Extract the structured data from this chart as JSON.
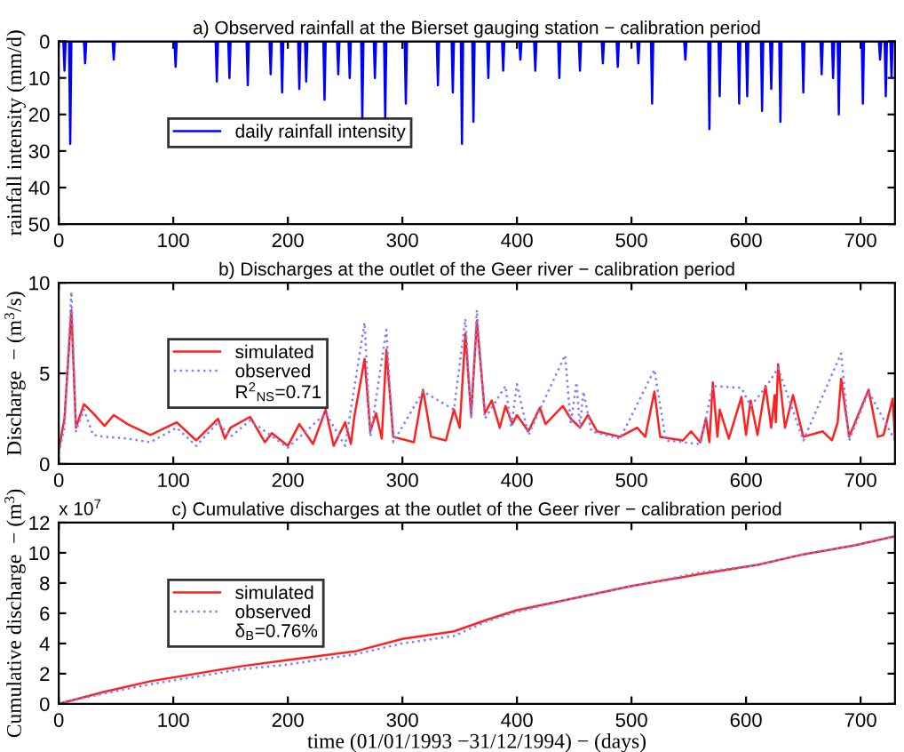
{
  "chart_data": [
    {
      "type": "line",
      "title": "a) Observed rainfall at the Bierset gauging station − calibration period",
      "ylabel": "rainfall intensity (mm/d)",
      "xlim": [
        0,
        730
      ],
      "xticks": [
        0,
        100,
        200,
        300,
        400,
        500,
        600,
        700
      ],
      "ylim": [
        50,
        0
      ],
      "yticks": [
        0,
        10,
        20,
        30,
        40,
        50
      ],
      "legend": "left",
      "grid": false,
      "series": [
        {
          "name": "daily rainfall intensity",
          "color": "#0000ff",
          "x": [
            0,
            4,
            5,
            6,
            9,
            10,
            11,
            22,
            23,
            24,
            47,
            48,
            49,
            101,
            102,
            103,
            137,
            138,
            139,
            148,
            149,
            150,
            164,
            165,
            166,
            184,
            185,
            186,
            194,
            195,
            196,
            209,
            210,
            211,
            215,
            216,
            217,
            231,
            232,
            233,
            243,
            244,
            245,
            253,
            254,
            255,
            264,
            265,
            266,
            275,
            276,
            277,
            284,
            285,
            286,
            302,
            303,
            304,
            330,
            331,
            332,
            343,
            344,
            345,
            351,
            352,
            353,
            361,
            362,
            363,
            374,
            375,
            376,
            387,
            388,
            389,
            402,
            403,
            404,
            415,
            416,
            417,
            436,
            437,
            438,
            454,
            455,
            456,
            474,
            475,
            476,
            487,
            488,
            489,
            505,
            506,
            507,
            517,
            518,
            519,
            546,
            547,
            548,
            567,
            568,
            569,
            576,
            577,
            578,
            593,
            594,
            595,
            600,
            601,
            602,
            613,
            614,
            615,
            621,
            622,
            623,
            629,
            630,
            631,
            649,
            650,
            651,
            665,
            666,
            667,
            675,
            676,
            677,
            680,
            681,
            682,
            701,
            702,
            703,
            716,
            717,
            718,
            721,
            722,
            723,
            726,
            727,
            728,
            730
          ],
          "values": [
            0,
            0,
            8,
            0,
            0,
            28,
            0,
            0,
            6,
            0,
            0,
            5,
            0,
            0,
            7,
            0,
            0,
            11,
            0,
            0,
            10,
            0,
            0,
            12,
            0,
            0,
            9,
            0,
            0,
            14,
            0,
            0,
            13,
            0,
            0,
            11,
            0,
            0,
            16,
            0,
            0,
            9,
            0,
            0,
            10,
            0,
            0,
            21,
            0,
            0,
            10,
            0,
            0,
            21,
            0,
            0,
            17,
            0,
            0,
            12,
            0,
            0,
            14,
            0,
            0,
            28,
            0,
            0,
            22,
            0,
            0,
            10,
            0,
            0,
            8,
            0,
            0,
            5,
            0,
            0,
            8,
            0,
            0,
            10,
            0,
            0,
            8,
            0,
            0,
            6,
            0,
            0,
            7,
            0,
            0,
            6,
            0,
            0,
            17,
            0,
            0,
            5,
            0,
            0,
            24,
            0,
            0,
            15,
            0,
            0,
            17,
            0,
            0,
            15,
            0,
            0,
            19,
            0,
            0,
            13,
            0,
            0,
            22,
            0,
            0,
            14,
            0,
            0,
            9,
            0,
            0,
            10,
            0,
            0,
            20,
            0,
            0,
            17,
            0,
            0,
            5,
            0,
            0,
            15,
            0,
            0,
            10,
            0,
            0
          ]
        }
      ]
    },
    {
      "type": "line",
      "title": "b) Discharges at the outlet of the Geer river − calibration period",
      "ylabel": "Discharge  − (m$^{3}$/s)",
      "xlim": [
        0,
        730
      ],
      "xticks": [
        0,
        100,
        200,
        300,
        400,
        500,
        600,
        700
      ],
      "ylim": [
        0,
        10
      ],
      "yticks": [
        0,
        5,
        10
      ],
      "legend": "left",
      "grid": false,
      "annotations": [
        "R$^{2}$$_{NS}$=0.71"
      ],
      "series": [
        {
          "name": "simulated",
          "color": "#ff2020",
          "line_style": "solid",
          "x": [
            0,
            5,
            11,
            15,
            22,
            30,
            40,
            48,
            60,
            80,
            103,
            120,
            139,
            145,
            150,
            167,
            180,
            186,
            200,
            210,
            222,
            233,
            240,
            250,
            255,
            258,
            267,
            272,
            277,
            282,
            286,
            292,
            310,
            318,
            325,
            338,
            345,
            350,
            355,
            360,
            365,
            372,
            378,
            385,
            390,
            396,
            400,
            410,
            420,
            425,
            440,
            447,
            455,
            462,
            470,
            490,
            505,
            512,
            520,
            525,
            545,
            552,
            560,
            565,
            568,
            571,
            575,
            577,
            585,
            596,
            600,
            604,
            610,
            617,
            622,
            625,
            626,
            628,
            634,
            641,
            650,
            667,
            675,
            680,
            683,
            690,
            707,
            715,
            720,
            728,
            730
          ],
          "values": [
            0.8,
            2.5,
            8.5,
            2.0,
            3.3,
            2.8,
            2.1,
            2.7,
            2.2,
            1.6,
            2.3,
            1.3,
            2.5,
            1.4,
            2.0,
            2.6,
            1.2,
            1.7,
            1.0,
            2.2,
            1.1,
            3.0,
            1.0,
            2.3,
            1.1,
            2.6,
            5.8,
            1.8,
            2.8,
            1.4,
            6.3,
            1.5,
            1.2,
            4.1,
            1.5,
            1.3,
            3.0,
            2.0,
            7.2,
            2.7,
            7.9,
            2.8,
            3.5,
            2.0,
            3.2,
            2.2,
            2.7,
            1.8,
            3.1,
            2.2,
            3.2,
            2.5,
            2.0,
            2.7,
            1.8,
            1.5,
            2.0,
            1.5,
            4.0,
            1.5,
            1.3,
            1.8,
            1.2,
            2.5,
            1.2,
            4.5,
            1.5,
            3.0,
            1.4,
            3.7,
            1.6,
            3.5,
            1.6,
            4.3,
            2.0,
            3.8,
            2.3,
            5.5,
            2.0,
            3.8,
            1.5,
            1.8,
            1.3,
            2.3,
            4.7,
            1.5,
            4.1,
            1.5,
            1.6,
            3.6,
            1.4
          ]
        },
        {
          "name": "observed",
          "color": "#8080ff",
          "line_style": "dotted",
          "x": [
            0,
            5,
            11,
            15,
            22,
            30,
            40,
            60,
            80,
            103,
            120,
            139,
            150,
            167,
            200,
            233,
            250,
            267,
            272,
            286,
            292,
            318,
            345,
            355,
            360,
            365,
            372,
            390,
            395,
            400,
            410,
            420,
            442,
            447,
            452,
            455,
            458,
            465,
            490,
            520,
            530,
            560,
            571,
            596,
            604,
            617,
            628,
            650,
            683,
            690,
            707,
            730
          ],
          "values": [
            0.6,
            2.0,
            9.5,
            1.8,
            3.0,
            1.6,
            1.5,
            1.4,
            1.2,
            2.0,
            1.0,
            2.3,
            1.5,
            2.4,
            0.9,
            2.8,
            1.0,
            7.8,
            1.5,
            7.4,
            1.2,
            4.0,
            3.0,
            8.0,
            2.5,
            8.5,
            2.5,
            4.3,
            2.0,
            4.4,
            1.6,
            3.0,
            6.0,
            2.2,
            4.5,
            2.0,
            4.0,
            1.8,
            1.4,
            5.2,
            1.3,
            1.1,
            4.3,
            4.2,
            3.2,
            4.2,
            5.3,
            1.3,
            6.1,
            1.3,
            4.0,
            1.3
          ]
        }
      ]
    },
    {
      "type": "line",
      "title": "c) Cumulative discharges at the outlet of the Geer river − calibration period",
      "xlabel": "time (01/01/1993 −31/12/1994) − (days)",
      "ylabel": "Cumulative discharge  − (m$^{3}$)",
      "xlim": [
        0,
        730
      ],
      "xticks": [
        0,
        100,
        200,
        300,
        400,
        500,
        600,
        700
      ],
      "ylim": [
        0,
        12
      ],
      "yticks": [
        0,
        2,
        4,
        6,
        8,
        10,
        12
      ],
      "legend": "left",
      "grid": false,
      "annotations": [
        "δ$_{B}$=0.76%",
        "x 10$^{7}$"
      ],
      "series": [
        {
          "name": "simulated",
          "color": "#ff2020",
          "line_style": "solid",
          "x": [
            0,
            40,
            80,
            120,
            160,
            200,
            260,
            300,
            345,
            375,
            400,
            450,
            500,
            560,
            610,
            650,
            695,
            730
          ],
          "values": [
            0,
            0.8,
            1.5,
            2.0,
            2.5,
            2.9,
            3.5,
            4.3,
            4.8,
            5.6,
            6.2,
            7.0,
            7.8,
            8.6,
            9.2,
            9.9,
            10.5,
            11.1
          ]
        },
        {
          "name": "observed",
          "color": "#8080ff",
          "line_style": "dotted",
          "x": [
            0,
            40,
            80,
            120,
            160,
            200,
            260,
            300,
            345,
            375,
            400,
            450,
            500,
            560,
            610,
            650,
            695,
            730
          ],
          "values": [
            0,
            0.7,
            1.3,
            1.8,
            2.3,
            2.6,
            3.3,
            4.0,
            4.5,
            5.5,
            6.1,
            7.0,
            7.8,
            8.7,
            9.2,
            9.9,
            10.5,
            11.1
          ]
        }
      ]
    }
  ]
}
